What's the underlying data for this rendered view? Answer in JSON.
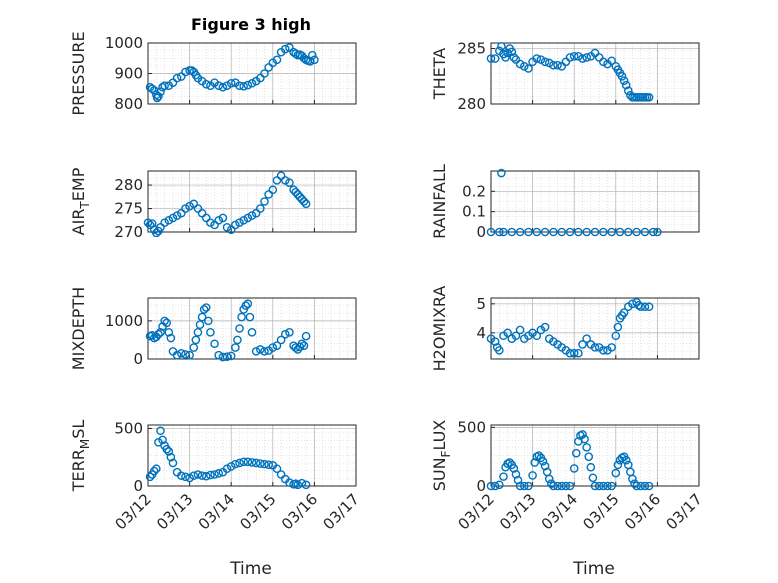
{
  "figure": {
    "title": "Figure 3 high",
    "xlabel": "Time"
  },
  "colors": {
    "marker": "#0072BD",
    "axis": "#262626",
    "grid": "#b0b0b0",
    "minor_grid": "#cfcfcf"
  },
  "chart_data": [
    {
      "type": "scatter",
      "id": "pressure",
      "ylabel": "PRESSURE",
      "xlim": [
        "03/12",
        "03/17"
      ],
      "ylim": [
        800,
        1000
      ],
      "yticks": [
        800,
        900,
        1000
      ],
      "xticks": [
        "03/12",
        "03/13",
        "03/14",
        "03/15",
        "03/16",
        "03/17"
      ],
      "grid": true,
      "x_days": [
        0.05,
        0.1,
        0.15,
        0.2,
        0.22,
        0.25,
        0.3,
        0.35,
        0.4,
        0.5,
        0.6,
        0.7,
        0.8,
        0.9,
        1.0,
        1.05,
        1.1,
        1.15,
        1.2,
        1.3,
        1.4,
        1.5,
        1.6,
        1.7,
        1.8,
        1.9,
        2.0,
        2.1,
        2.2,
        2.3,
        2.4,
        2.5,
        2.6,
        2.7,
        2.8,
        2.9,
        3.0,
        3.1,
        3.2,
        3.3,
        3.4,
        3.5,
        3.55,
        3.6,
        3.65,
        3.7,
        3.75,
        3.8,
        3.85,
        3.9,
        3.95,
        4.0
      ],
      "y": [
        855,
        850,
        845,
        830,
        820,
        825,
        840,
        855,
        860,
        860,
        870,
        885,
        890,
        905,
        910,
        910,
        905,
        895,
        885,
        875,
        865,
        860,
        870,
        860,
        855,
        860,
        868,
        870,
        860,
        858,
        862,
        868,
        875,
        885,
        900,
        920,
        935,
        945,
        970,
        980,
        985,
        970,
        965,
        960,
        962,
        958,
        950,
        945,
        942,
        940,
        960,
        945
      ]
    },
    {
      "type": "scatter",
      "id": "theta",
      "ylabel": "THETA",
      "xlim": [
        "03/12",
        "03/17"
      ],
      "ylim": [
        280,
        285.5
      ],
      "yticks": [
        280,
        285
      ],
      "xticks": [
        "03/12",
        "03/13",
        "03/14",
        "03/15",
        "03/16",
        "03/17"
      ],
      "grid": true,
      "x_days": [
        0.0,
        0.1,
        0.2,
        0.25,
        0.3,
        0.35,
        0.4,
        0.45,
        0.5,
        0.55,
        0.6,
        0.7,
        0.8,
        0.9,
        1.0,
        1.1,
        1.2,
        1.3,
        1.4,
        1.5,
        1.6,
        1.7,
        1.8,
        1.9,
        2.0,
        2.1,
        2.2,
        2.3,
        2.4,
        2.5,
        2.6,
        2.7,
        2.8,
        2.9,
        3.0,
        3.05,
        3.1,
        3.15,
        3.2,
        3.25,
        3.3,
        3.35,
        3.4,
        3.45,
        3.5,
        3.55,
        3.6,
        3.65,
        3.7,
        3.75,
        3.8
      ],
      "y": [
        284.1,
        284.1,
        284.8,
        285.2,
        284.5,
        284.2,
        284.6,
        285.0,
        284.7,
        284.2,
        284.0,
        283.6,
        283.4,
        283.2,
        283.8,
        284.1,
        284.0,
        283.8,
        283.7,
        283.5,
        283.5,
        283.4,
        283.8,
        284.2,
        284.3,
        284.3,
        284.1,
        284.2,
        284.3,
        284.6,
        284.2,
        283.8,
        283.6,
        283.9,
        283.4,
        283.1,
        282.8,
        282.5,
        282.1,
        281.7,
        281.2,
        280.8,
        280.6,
        280.6,
        280.6,
        280.6,
        280.6,
        280.6,
        280.6,
        280.6,
        280.6
      ]
    },
    {
      "type": "scatter",
      "id": "air-temp",
      "ylabel": "AIR_TEMP",
      "xlim": [
        "03/12",
        "03/17"
      ],
      "ylim": [
        270,
        283
      ],
      "yticks": [
        270,
        275,
        280
      ],
      "xticks": [
        "03/12",
        "03/13",
        "03/14",
        "03/15",
        "03/16",
        "03/17"
      ],
      "grid": true,
      "x_days": [
        0.0,
        0.05,
        0.1,
        0.15,
        0.2,
        0.25,
        0.3,
        0.4,
        0.5,
        0.6,
        0.7,
        0.8,
        0.9,
        1.0,
        1.1,
        1.2,
        1.3,
        1.4,
        1.5,
        1.6,
        1.7,
        1.8,
        1.9,
        2.0,
        2.1,
        2.2,
        2.3,
        2.4,
        2.5,
        2.6,
        2.7,
        2.8,
        2.9,
        3.0,
        3.1,
        3.2,
        3.3,
        3.4,
        3.5,
        3.55,
        3.6,
        3.65,
        3.7,
        3.75,
        3.8
      ],
      "y": [
        272.0,
        271.5,
        271.8,
        270.5,
        269.8,
        270.2,
        271.0,
        272.0,
        272.5,
        273.0,
        273.5,
        274.0,
        275.0,
        275.5,
        276.0,
        275.0,
        274.0,
        273.0,
        272.0,
        271.5,
        272.5,
        273.0,
        271.0,
        270.5,
        271.5,
        272.0,
        272.5,
        273.0,
        273.5,
        274.0,
        275.0,
        276.5,
        278.0,
        279.0,
        281.0,
        282.0,
        281.0,
        280.5,
        279.0,
        278.5,
        278.0,
        277.5,
        277.0,
        276.5,
        276.0
      ]
    },
    {
      "type": "scatter",
      "id": "rainfall",
      "ylabel": "RAINFALL",
      "xlim": [
        "03/12",
        "03/17"
      ],
      "ylim": [
        0,
        0.3
      ],
      "yticks": [
        0,
        0.1,
        0.2
      ],
      "xticks": [
        "03/12",
        "03/13",
        "03/14",
        "03/15",
        "03/16",
        "03/17"
      ],
      "grid": true,
      "x_days": [
        0.0,
        0.2,
        0.25,
        0.3,
        0.5,
        0.7,
        0.9,
        1.1,
        1.3,
        1.5,
        1.7,
        1.9,
        2.1,
        2.3,
        2.5,
        2.7,
        2.9,
        3.1,
        3.3,
        3.5,
        3.7,
        3.9,
        4.0
      ],
      "y": [
        0,
        0,
        0.29,
        0,
        0,
        0,
        0,
        0,
        0,
        0,
        0,
        0,
        0,
        0,
        0,
        0,
        0,
        0,
        0,
        0,
        0,
        0,
        0
      ]
    },
    {
      "type": "scatter",
      "id": "mixdepth",
      "ylabel": "MIXDEPTH",
      "xlim": [
        "03/12",
        "03/17"
      ],
      "ylim": [
        0,
        1600
      ],
      "yticks": [
        0,
        1000
      ],
      "xticks": [
        "03/12",
        "03/13",
        "03/14",
        "03/15",
        "03/16",
        "03/17"
      ],
      "grid": true,
      "x_days": [
        0.05,
        0.1,
        0.15,
        0.2,
        0.25,
        0.3,
        0.35,
        0.4,
        0.45,
        0.5,
        0.55,
        0.6,
        0.7,
        0.8,
        0.9,
        1.0,
        1.1,
        1.15,
        1.2,
        1.25,
        1.3,
        1.35,
        1.4,
        1.45,
        1.5,
        1.6,
        1.7,
        1.8,
        1.9,
        2.0,
        2.1,
        2.15,
        2.2,
        2.25,
        2.3,
        2.35,
        2.4,
        2.45,
        2.5,
        2.6,
        2.7,
        2.8,
        2.9,
        3.0,
        3.1,
        3.2,
        3.3,
        3.4,
        3.5,
        3.55,
        3.6,
        3.65,
        3.7,
        3.75,
        3.8
      ],
      "y": [
        600,
        620,
        550,
        580,
        650,
        700,
        850,
        1000,
        950,
        700,
        550,
        200,
        100,
        150,
        120,
        100,
        300,
        500,
        700,
        900,
        1100,
        1300,
        1350,
        1000,
        700,
        400,
        100,
        50,
        60,
        80,
        300,
        500,
        800,
        1100,
        1300,
        1400,
        1450,
        1100,
        700,
        200,
        250,
        200,
        220,
        300,
        350,
        500,
        650,
        700,
        350,
        300,
        250,
        320,
        400,
        350,
        600
      ]
    },
    {
      "type": "scatter",
      "id": "h2omixra",
      "ylabel": "H2OMIXRA",
      "xlim": [
        "03/12",
        "03/17"
      ],
      "ylim": [
        3.1,
        5.2
      ],
      "yticks": [
        4,
        5
      ],
      "xticks": [
        "03/12",
        "03/13",
        "03/14",
        "03/15",
        "03/16",
        "03/17"
      ],
      "grid": true,
      "x_days": [
        0.0,
        0.1,
        0.15,
        0.2,
        0.3,
        0.4,
        0.5,
        0.6,
        0.7,
        0.8,
        0.9,
        1.0,
        1.1,
        1.2,
        1.3,
        1.4,
        1.5,
        1.6,
        1.7,
        1.8,
        1.9,
        2.0,
        2.1,
        2.2,
        2.3,
        2.4,
        2.5,
        2.6,
        2.7,
        2.8,
        2.9,
        3.0,
        3.05,
        3.1,
        3.15,
        3.2,
        3.3,
        3.4,
        3.5,
        3.55,
        3.6,
        3.7,
        3.8
      ],
      "y": [
        3.8,
        3.7,
        3.5,
        3.4,
        3.9,
        4.0,
        3.8,
        3.9,
        4.1,
        3.8,
        3.9,
        4.0,
        3.9,
        4.1,
        4.2,
        3.8,
        3.7,
        3.6,
        3.5,
        3.4,
        3.3,
        3.3,
        3.3,
        3.6,
        3.8,
        3.6,
        3.5,
        3.5,
        3.4,
        3.4,
        3.5,
        3.9,
        4.2,
        4.5,
        4.6,
        4.7,
        4.9,
        5.0,
        5.05,
        4.95,
        4.9,
        4.9,
        4.9
      ]
    },
    {
      "type": "scatter",
      "id": "terr-msl",
      "ylabel": "TERR_MSL",
      "xlim": [
        "03/12",
        "03/17"
      ],
      "ylim": [
        0,
        530
      ],
      "yticks": [
        0,
        500
      ],
      "xticks": [
        "03/12",
        "03/13",
        "03/14",
        "03/15",
        "03/16",
        "03/17"
      ],
      "grid": true,
      "x_days": [
        0.05,
        0.1,
        0.15,
        0.2,
        0.25,
        0.3,
        0.35,
        0.4,
        0.45,
        0.5,
        0.55,
        0.6,
        0.7,
        0.8,
        0.9,
        1.0,
        1.1,
        1.2,
        1.3,
        1.4,
        1.5,
        1.6,
        1.7,
        1.8,
        1.9,
        2.0,
        2.1,
        2.2,
        2.3,
        2.4,
        2.5,
        2.6,
        2.7,
        2.8,
        2.9,
        3.0,
        3.1,
        3.2,
        3.3,
        3.4,
        3.5,
        3.55,
        3.6,
        3.7,
        3.8
      ],
      "y": [
        80,
        100,
        130,
        150,
        380,
        480,
        400,
        350,
        320,
        300,
        250,
        200,
        120,
        90,
        80,
        70,
        90,
        100,
        90,
        85,
        95,
        100,
        110,
        120,
        150,
        170,
        190,
        200,
        210,
        210,
        205,
        200,
        195,
        190,
        185,
        180,
        150,
        100,
        60,
        30,
        15,
        20,
        10,
        25,
        10
      ]
    },
    {
      "type": "scatter",
      "id": "sun-flux",
      "ylabel": "SUN_FLUX",
      "xlim": [
        "03/12",
        "03/17"
      ],
      "ylim": [
        0,
        520
      ],
      "yticks": [
        0,
        500
      ],
      "xticks": [
        "03/12",
        "03/13",
        "03/14",
        "03/15",
        "03/16",
        "03/17"
      ],
      "grid": true,
      "x_days": [
        0.0,
        0.1,
        0.2,
        0.3,
        0.35,
        0.4,
        0.45,
        0.5,
        0.55,
        0.6,
        0.65,
        0.7,
        0.8,
        0.9,
        1.0,
        1.05,
        1.1,
        1.15,
        1.2,
        1.25,
        1.3,
        1.35,
        1.4,
        1.45,
        1.5,
        1.6,
        1.7,
        1.8,
        1.9,
        2.0,
        2.05,
        2.1,
        2.15,
        2.2,
        2.25,
        2.3,
        2.35,
        2.4,
        2.45,
        2.5,
        2.6,
        2.7,
        2.8,
        2.9,
        3.0,
        3.05,
        3.1,
        3.15,
        3.2,
        3.25,
        3.3,
        3.35,
        3.4,
        3.45,
        3.5,
        3.6,
        3.7,
        3.8
      ],
      "y": [
        0,
        0,
        10,
        80,
        160,
        190,
        200,
        180,
        150,
        100,
        50,
        0,
        0,
        0,
        90,
        200,
        250,
        260,
        240,
        210,
        170,
        120,
        60,
        20,
        0,
        0,
        0,
        0,
        0,
        150,
        280,
        380,
        430,
        440,
        400,
        330,
        250,
        160,
        70,
        0,
        0,
        0,
        0,
        0,
        110,
        180,
        220,
        240,
        250,
        220,
        180,
        120,
        60,
        20,
        0,
        0,
        0,
        0
      ]
    }
  ]
}
